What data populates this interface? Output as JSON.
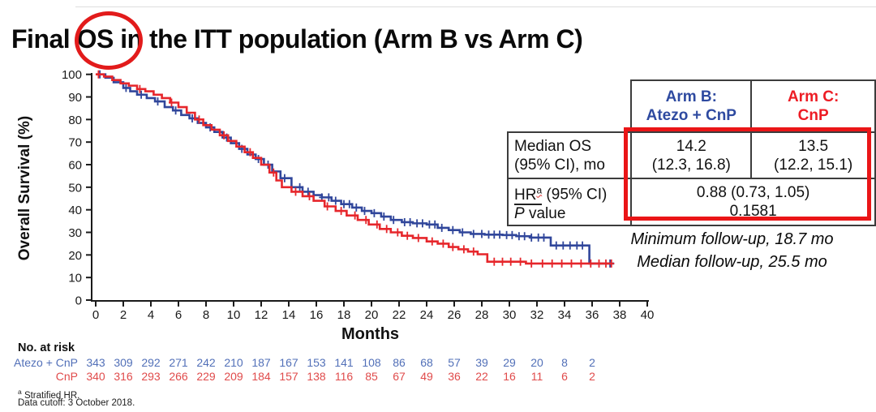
{
  "page": {
    "title_prefix": "Final ",
    "title_circled": "OS",
    "title_suffix": " in the ITT population (Arm B vs Arm C)"
  },
  "summary_table": {
    "col_headers": [
      {
        "line1": "Arm B:",
        "line2": "Atezo + CnP"
      },
      {
        "line1": "Arm C:",
        "line2": "CnP"
      }
    ],
    "median_row": {
      "label_line1": "Median OS",
      "label_line2": "(95% CI), mo",
      "arm_b_line1": "14.2",
      "arm_b_line2": "(12.3, 16.8)",
      "arm_c_line1": "13.5",
      "arm_c_line2": "(12.2, 15.1)"
    },
    "hr_row": {
      "label_hr": "HR",
      "label_hr_sup": "a",
      "label_hr_rest": " (95% CI)",
      "label_p_italic": "P",
      "label_p_rest": " value",
      "value_line1": "0.88 (0.73, 1.05)",
      "value_line2": "0.1581"
    }
  },
  "followup": {
    "line1": "Minimum follow-up, 18.7 mo",
    "line2": "Median follow-up, 25.5 mo"
  },
  "at_risk": {
    "title": "No. at risk",
    "months": [
      0,
      2,
      4,
      6,
      8,
      10,
      12,
      14,
      16,
      18,
      20,
      22,
      24,
      26,
      28,
      30,
      32,
      34,
      36
    ],
    "rows": [
      {
        "label": "Atezo + CnP",
        "color": "#5270b8",
        "values": [
          343,
          309,
          292,
          271,
          242,
          210,
          187,
          167,
          153,
          141,
          108,
          86,
          68,
          57,
          39,
          29,
          20,
          8,
          2
        ]
      },
      {
        "label": "CnP",
        "color": "#e04b4b",
        "values": [
          340,
          316,
          293,
          266,
          229,
          209,
          184,
          157,
          138,
          116,
          85,
          67,
          49,
          36,
          22,
          16,
          11,
          6,
          2
        ]
      }
    ]
  },
  "footnotes": {
    "sup": "a",
    "line1": "Stratified HR.",
    "line2": "Data cutoff: 3 October 2018."
  },
  "chart_data": {
    "type": "line",
    "subtype": "kaplan-meier-step",
    "title": "Final OS in the ITT population (Arm B vs Arm C)",
    "xlabel": "Months",
    "ylabel": "Overall Survival (%)",
    "xlim": [
      0,
      40
    ],
    "ylim": [
      0,
      100
    ],
    "xticks": [
      0,
      2,
      4,
      6,
      8,
      10,
      12,
      14,
      16,
      18,
      20,
      22,
      24,
      26,
      28,
      30,
      32,
      34,
      36,
      38,
      40
    ],
    "yticks": [
      0,
      10,
      20,
      30,
      40,
      50,
      60,
      70,
      80,
      90,
      100
    ],
    "grid": false,
    "legend_position": "none (identified in side table)",
    "series": [
      {
        "name": "Arm B: Atezo + CnP",
        "color": "#30469b",
        "points": [
          [
            0,
            100
          ],
          [
            0.7,
            98.5
          ],
          [
            1.3,
            96.5
          ],
          [
            2,
            94
          ],
          [
            2.5,
            92.5
          ],
          [
            3,
            91
          ],
          [
            3.7,
            89.5
          ],
          [
            4.3,
            88
          ],
          [
            5,
            85.5
          ],
          [
            5.6,
            84
          ],
          [
            6.2,
            82
          ],
          [
            6.8,
            80.5
          ],
          [
            7.4,
            78.5
          ],
          [
            8,
            76.5
          ],
          [
            8.6,
            74.5
          ],
          [
            9.2,
            72
          ],
          [
            9.8,
            69.5
          ],
          [
            10.4,
            67
          ],
          [
            11,
            64.5
          ],
          [
            11.6,
            62.5
          ],
          [
            12.2,
            60
          ],
          [
            12.8,
            57
          ],
          [
            13.4,
            54
          ],
          [
            14.2,
            50
          ],
          [
            15,
            48
          ],
          [
            15.8,
            46.5
          ],
          [
            16.4,
            45.5
          ],
          [
            17.1,
            44
          ],
          [
            17.8,
            42.5
          ],
          [
            18.6,
            41
          ],
          [
            19.3,
            39.5
          ],
          [
            20,
            38.5
          ],
          [
            20.7,
            37
          ],
          [
            21.4,
            35.5
          ],
          [
            22.2,
            34.5
          ],
          [
            23,
            34
          ],
          [
            24,
            33.5
          ],
          [
            24.8,
            32
          ],
          [
            25.6,
            31
          ],
          [
            26.4,
            30
          ],
          [
            27.2,
            29.3
          ],
          [
            28.2,
            29
          ],
          [
            29.5,
            28.8
          ],
          [
            30.5,
            28.3
          ],
          [
            31.5,
            27.7
          ],
          [
            33,
            24.2
          ],
          [
            35.8,
            16.2
          ],
          [
            37.6,
            16.2
          ]
        ],
        "censor_times": [
          0.3,
          2.2,
          3.3,
          4.5,
          5.8,
          7.0,
          8.3,
          9.5,
          10.6,
          11.8,
          12.5,
          13.7,
          14.8,
          15.4,
          16.4,
          16.9,
          17.4,
          18.0,
          18.4,
          18.9,
          19.5,
          20.2,
          20.9,
          21.6,
          22.4,
          22.8,
          23.3,
          23.7,
          24.2,
          24.6,
          25.1,
          25.9,
          26.6,
          27.4,
          28.0,
          28.5,
          28.9,
          29.3,
          29.8,
          30.2,
          30.7,
          31.1,
          31.6,
          32.1,
          32.5,
          33.4,
          33.9,
          34.4,
          34.9,
          35.3,
          37.3
        ]
      },
      {
        "name": "Arm C: CnP",
        "color": "#e6262b",
        "points": [
          [
            0,
            100
          ],
          [
            0.6,
            99
          ],
          [
            1.2,
            97.5
          ],
          [
            1.8,
            96
          ],
          [
            2.4,
            95
          ],
          [
            3,
            93.5
          ],
          [
            3.6,
            92.5
          ],
          [
            4.2,
            91
          ],
          [
            4.8,
            89.5
          ],
          [
            5.4,
            87.5
          ],
          [
            6,
            85.5
          ],
          [
            6.6,
            83
          ],
          [
            7.2,
            80
          ],
          [
            7.8,
            77.5
          ],
          [
            8.4,
            75.5
          ],
          [
            9,
            73
          ],
          [
            9.6,
            70.5
          ],
          [
            10.2,
            68
          ],
          [
            10.8,
            65.5
          ],
          [
            11.4,
            63
          ],
          [
            12,
            60
          ],
          [
            12.6,
            56.5
          ],
          [
            13.1,
            53
          ],
          [
            13.5,
            50
          ],
          [
            14.2,
            48
          ],
          [
            15,
            46
          ],
          [
            15.8,
            44
          ],
          [
            16.6,
            41.5
          ],
          [
            17.4,
            39.5
          ],
          [
            18.2,
            37.5
          ],
          [
            19,
            35.5
          ],
          [
            19.8,
            33.5
          ],
          [
            20.6,
            31.5
          ],
          [
            21.4,
            30
          ],
          [
            22.2,
            28.5
          ],
          [
            23,
            27.5
          ],
          [
            24,
            26
          ],
          [
            24.8,
            25
          ],
          [
            25.6,
            23.5
          ],
          [
            26.3,
            22.5
          ],
          [
            27,
            21.5
          ],
          [
            27.7,
            20.3
          ],
          [
            28.4,
            17
          ],
          [
            31.2,
            16.2
          ],
          [
            37.4,
            16.2
          ]
        ],
        "censor_times": [
          0.2,
          3.2,
          5.5,
          7.5,
          9.3,
          11.2,
          12.9,
          14.5,
          15.5,
          16.8,
          17.8,
          18.8,
          19.6,
          20.4,
          21.1,
          21.9,
          22.6,
          23.4,
          24.4,
          25.2,
          25.9,
          26.7,
          27.4,
          28.9,
          29.5,
          30.1,
          30.8,
          31.6,
          32.4,
          33.1,
          33.8,
          34.5,
          35.2,
          35.9,
          36.5,
          37.0,
          37.4
        ]
      }
    ]
  }
}
